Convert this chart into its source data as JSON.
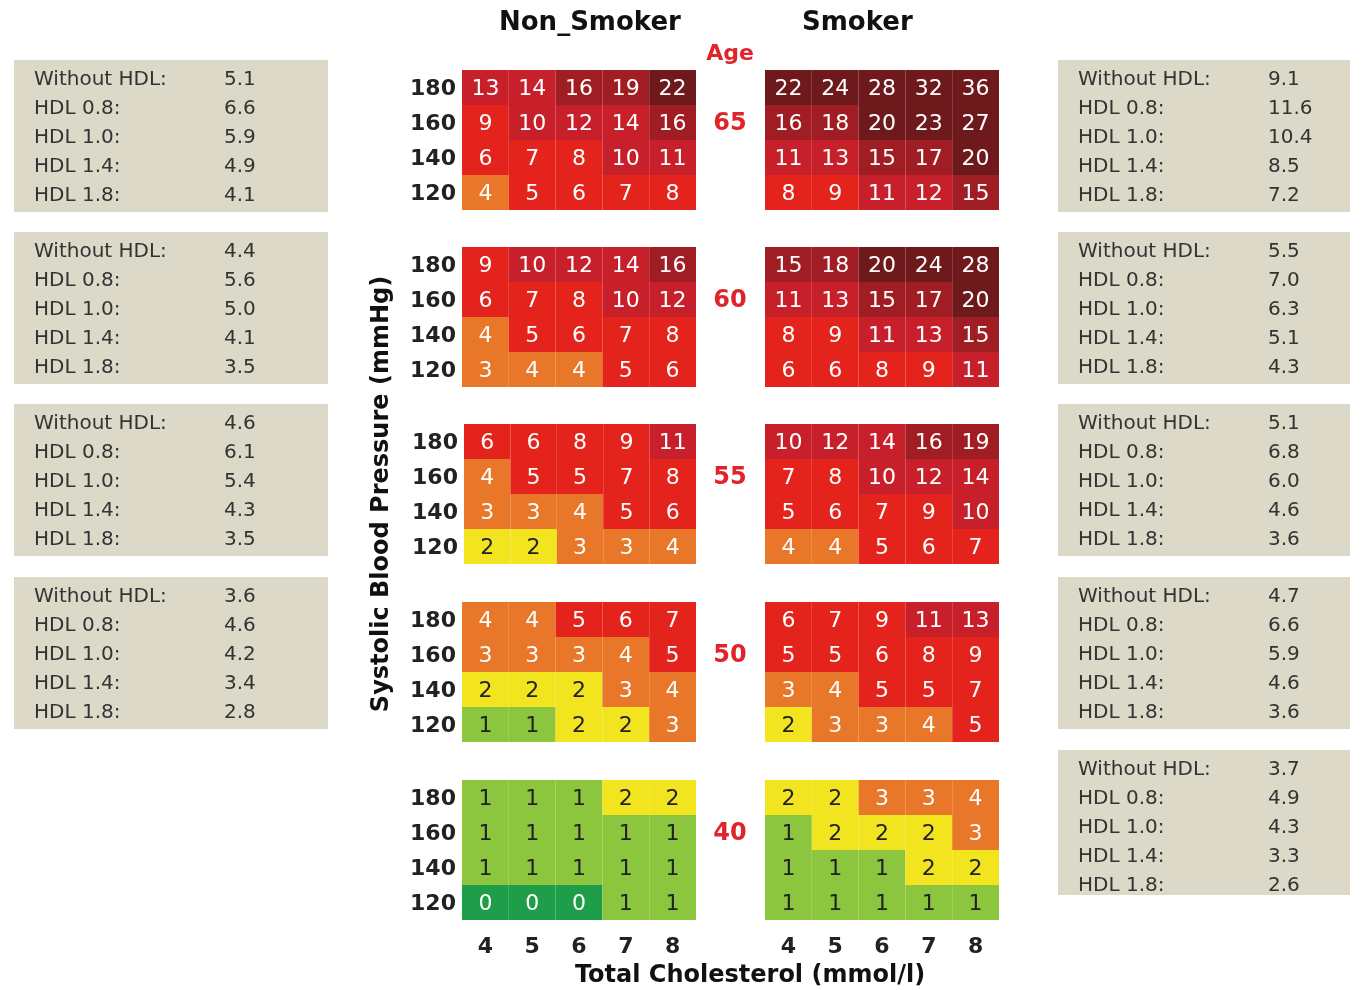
{
  "chart_data": [
    {
      "type": "other",
      "annotations": [
        "Without HDL:",
        "5.1",
        "HDL 0.8:",
        "6.6",
        "HDL 1.0:",
        "5.9",
        "HDL 1.4:",
        "4.9",
        "HDL 1.8:",
        "4.1"
      ]
    },
    {
      "type": "heatmap",
      "title": "Non_Smoker",
      "categories": [
        "4",
        "5",
        "6",
        "7",
        "8"
      ],
      "y_categories": [
        "180",
        "160",
        "140",
        "120"
      ],
      "cells": [
        [
          13,
          14,
          16,
          19,
          22
        ],
        [
          9,
          10,
          12,
          14,
          16
        ],
        [
          6,
          7,
          8,
          10,
          11
        ],
        [
          4,
          5,
          6,
          7,
          8
        ]
      ],
      "colors": [
        [
          "#c7202a",
          "#c7202a",
          "#a11d24",
          "#a11d24",
          "#6e1a1c"
        ],
        [
          "#e3231c",
          "#c7202a",
          "#c7202a",
          "#c7202a",
          "#a11d24"
        ],
        [
          "#e3231c",
          "#e3231c",
          "#e3231c",
          "#c7202a",
          "#c7202a"
        ],
        [
          "#e8772a",
          "#e3231c",
          "#e3231c",
          "#e3231c",
          "#e3231c"
        ]
      ],
      "data_labels": true,
      "tick_labels": "y",
      "annotations": [
        "Age",
        "65"
      ]
    },
    {
      "type": "heatmap",
      "title": "Smoker",
      "categories": [
        "4",
        "5",
        "6",
        "7",
        "8"
      ],
      "y_categories": [
        "180",
        "160",
        "140",
        "120"
      ],
      "cells": [
        [
          22,
          24,
          28,
          32,
          36
        ],
        [
          16,
          18,
          20,
          23,
          27
        ],
        [
          11,
          13,
          15,
          17,
          20
        ],
        [
          8,
          9,
          11,
          12,
          15
        ]
      ],
      "colors": [
        [
          "#6e1a1c",
          "#6e1a1c",
          "#6e1a1c",
          "#6e1a1c",
          "#6e1a1c"
        ],
        [
          "#a11d24",
          "#a11d24",
          "#6e1a1c",
          "#6e1a1c",
          "#6e1a1c"
        ],
        [
          "#c7202a",
          "#c7202a",
          "#a11d24",
          "#a11d24",
          "#6e1a1c"
        ],
        [
          "#e3231c",
          "#e3231c",
          "#c7202a",
          "#c7202a",
          "#a11d24"
        ]
      ],
      "data_labels": true,
      "tick_labels": false
    },
    {
      "type": "other",
      "annotations": [
        "Without HDL:",
        "9.1",
        "HDL 0.8:",
        "11.6",
        "HDL 1.0:",
        "10.4",
        "HDL 1.4:",
        "8.5",
        "HDL 1.8:",
        "7.2"
      ]
    },
    {
      "type": "other",
      "annotations": [
        "Without HDL:",
        "4.4",
        "HDL 0.8:",
        "5.6",
        "HDL 1.0:",
        "5.0",
        "HDL 1.4:",
        "4.1",
        "HDL 1.8:",
        "3.5"
      ]
    },
    {
      "type": "heatmap",
      "categories": [
        "4",
        "5",
        "6",
        "7",
        "8"
      ],
      "y_categories": [
        "180",
        "160",
        "140",
        "120"
      ],
      "cells": [
        [
          9,
          10,
          12,
          14,
          16
        ],
        [
          6,
          7,
          8,
          10,
          12
        ],
        [
          4,
          5,
          6,
          7,
          8
        ],
        [
          3,
          4,
          4,
          5,
          6
        ]
      ],
      "colors": [
        [
          "#e3231c",
          "#c7202a",
          "#c7202a",
          "#c7202a",
          "#a11d24"
        ],
        [
          "#e3231c",
          "#e3231c",
          "#e3231c",
          "#c7202a",
          "#c7202a"
        ],
        [
          "#e8772a",
          "#e3231c",
          "#e3231c",
          "#e3231c",
          "#e3231c"
        ],
        [
          "#e8772a",
          "#e8772a",
          "#e8772a",
          "#e3231c",
          "#e3231c"
        ]
      ],
      "data_labels": true,
      "tick_labels": "y",
      "annotations": [
        "60"
      ]
    },
    {
      "type": "heatmap",
      "categories": [
        "4",
        "5",
        "6",
        "7",
        "8"
      ],
      "y_categories": [
        "180",
        "160",
        "140",
        "120"
      ],
      "cells": [
        [
          15,
          18,
          20,
          24,
          28
        ],
        [
          11,
          13,
          15,
          17,
          20
        ],
        [
          8,
          9,
          11,
          13,
          15
        ],
        [
          6,
          6,
          8,
          9,
          11
        ]
      ],
      "colors": [
        [
          "#a11d24",
          "#a11d24",
          "#6e1a1c",
          "#6e1a1c",
          "#6e1a1c"
        ],
        [
          "#c7202a",
          "#c7202a",
          "#a11d24",
          "#a11d24",
          "#6e1a1c"
        ],
        [
          "#e3231c",
          "#e3231c",
          "#c7202a",
          "#c7202a",
          "#a11d24"
        ],
        [
          "#e3231c",
          "#e3231c",
          "#e3231c",
          "#e3231c",
          "#c7202a"
        ]
      ],
      "data_labels": true,
      "tick_labels": false
    },
    {
      "type": "other",
      "annotations": [
        "Without HDL:",
        "5.5",
        "HDL 0.8:",
        "7.0",
        "HDL 1.0:",
        "6.3",
        "HDL 1.4:",
        "5.1",
        "HDL 1.8:",
        "4.3"
      ]
    },
    {
      "type": "other",
      "annotations": [
        "Without HDL:",
        "4.6",
        "HDL 0.8:",
        "6.1",
        "HDL 1.0:",
        "5.4",
        "HDL 1.4:",
        "4.3",
        "HDL 1.8:",
        "3.5"
      ]
    },
    {
      "type": "heatmap",
      "ylabel": "Systolic Blood Pressure (mmHg)",
      "categories": [
        "4",
        "5",
        "6",
        "7",
        "8"
      ],
      "y_categories": [
        "180",
        "160",
        "140",
        "120"
      ],
      "cells": [
        [
          6,
          6,
          8,
          9,
          11
        ],
        [
          4,
          5,
          5,
          7,
          8
        ],
        [
          3,
          3,
          4,
          5,
          6
        ],
        [
          2,
          2,
          3,
          3,
          4
        ]
      ],
      "colors": [
        [
          "#e3231c",
          "#e3231c",
          "#e3231c",
          "#e3231c",
          "#c7202a"
        ],
        [
          "#e8772a",
          "#e3231c",
          "#e3231c",
          "#e3231c",
          "#e3231c"
        ],
        [
          "#e8772a",
          "#e8772a",
          "#e8772a",
          "#e3231c",
          "#e3231c"
        ],
        [
          "#f2e41e",
          "#f2e41e",
          "#e8772a",
          "#e8772a",
          "#e8772a"
        ]
      ],
      "data_labels": true,
      "tick_labels": "y",
      "annotations": [
        "55"
      ]
    },
    {
      "type": "heatmap",
      "categories": [
        "4",
        "5",
        "6",
        "7",
        "8"
      ],
      "y_categories": [
        "180",
        "160",
        "140",
        "120"
      ],
      "cells": [
        [
          10,
          12,
          14,
          16,
          19
        ],
        [
          7,
          8,
          10,
          12,
          14
        ],
        [
          5,
          6,
          7,
          9,
          10
        ],
        [
          4,
          4,
          5,
          6,
          7
        ]
      ],
      "colors": [
        [
          "#c7202a",
          "#c7202a",
          "#c7202a",
          "#a11d24",
          "#a11d24"
        ],
        [
          "#e3231c",
          "#e3231c",
          "#c7202a",
          "#c7202a",
          "#c7202a"
        ],
        [
          "#e3231c",
          "#e3231c",
          "#e3231c",
          "#e3231c",
          "#c7202a"
        ],
        [
          "#e8772a",
          "#e8772a",
          "#e3231c",
          "#e3231c",
          "#e3231c"
        ]
      ],
      "data_labels": true,
      "tick_labels": false
    },
    {
      "type": "other",
      "annotations": [
        "Without HDL:",
        "5.1",
        "HDL 0.8:",
        "6.8",
        "HDL 1.0:",
        "6.0",
        "HDL 1.4:",
        "4.6",
        "HDL 1.8:",
        "3.6"
      ]
    },
    {
      "type": "other",
      "annotations": [
        "Without HDL:",
        "3.6",
        "HDL 0.8:",
        "4.6",
        "HDL 1.0:",
        "4.2",
        "HDL 1.4:",
        "3.4",
        "HDL 1.8:",
        "2.8"
      ]
    },
    {
      "type": "heatmap",
      "categories": [
        "4",
        "5",
        "6",
        "7",
        "8"
      ],
      "y_categories": [
        "180",
        "160",
        "140",
        "120"
      ],
      "cells": [
        [
          4,
          4,
          5,
          6,
          7
        ],
        [
          3,
          3,
          3,
          4,
          5
        ],
        [
          2,
          2,
          2,
          3,
          4
        ],
        [
          1,
          1,
          2,
          2,
          3
        ]
      ],
      "colors": [
        [
          "#e8772a",
          "#e8772a",
          "#e3231c",
          "#e3231c",
          "#e3231c"
        ],
        [
          "#e8772a",
          "#e8772a",
          "#e8772a",
          "#e8772a",
          "#e3231c"
        ],
        [
          "#f2e41e",
          "#f2e41e",
          "#f2e41e",
          "#e8772a",
          "#e8772a"
        ],
        [
          "#8cc63f",
          "#8cc63f",
          "#f2e41e",
          "#f2e41e",
          "#e8772a"
        ]
      ],
      "data_labels": true,
      "tick_labels": "y",
      "annotations": [
        "50"
      ]
    },
    {
      "type": "heatmap",
      "categories": [
        "4",
        "5",
        "6",
        "7",
        "8"
      ],
      "y_categories": [
        "180",
        "160",
        "140",
        "120"
      ],
      "cells": [
        [
          6,
          7,
          9,
          11,
          13
        ],
        [
          5,
          5,
          6,
          8,
          9
        ],
        [
          3,
          4,
          5,
          5,
          7
        ],
        [
          2,
          3,
          3,
          4,
          5
        ]
      ],
      "colors": [
        [
          "#e3231c",
          "#e3231c",
          "#e3231c",
          "#c7202a",
          "#c7202a"
        ],
        [
          "#e3231c",
          "#e3231c",
          "#e3231c",
          "#e3231c",
          "#e3231c"
        ],
        [
          "#e8772a",
          "#e8772a",
          "#e3231c",
          "#e3231c",
          "#e3231c"
        ],
        [
          "#f2e41e",
          "#e8772a",
          "#e8772a",
          "#e8772a",
          "#e3231c"
        ]
      ],
      "data_labels": true,
      "tick_labels": false
    },
    {
      "type": "other",
      "annotations": [
        "Without HDL:",
        "4.7",
        "HDL 0.8:",
        "6.6",
        "HDL 1.0:",
        "5.9",
        "HDL 1.4:",
        "4.6",
        "HDL 1.8:",
        "3.6"
      ]
    },
    {
      "type": "heatmap",
      "xlabel": "Total Cholesterol (mmol/l)",
      "categories": [
        "4",
        "5",
        "6",
        "7",
        "8"
      ],
      "y_categories": [
        "180",
        "160",
        "140",
        "120"
      ],
      "cells": [
        [
          1,
          1,
          1,
          2,
          2
        ],
        [
          1,
          1,
          1,
          1,
          1
        ],
        [
          1,
          1,
          1,
          1,
          1
        ],
        [
          0,
          0,
          0,
          1,
          1
        ]
      ],
      "colors": [
        [
          "#8cc63f",
          "#8cc63f",
          "#8cc63f",
          "#f2e41e",
          "#f2e41e"
        ],
        [
          "#8cc63f",
          "#8cc63f",
          "#8cc63f",
          "#8cc63f",
          "#8cc63f"
        ],
        [
          "#8cc63f",
          "#8cc63f",
          "#8cc63f",
          "#8cc63f",
          "#8cc63f"
        ],
        [
          "#1f9e4a",
          "#1f9e4a",
          "#1f9e4a",
          "#8cc63f",
          "#8cc63f"
        ]
      ],
      "data_labels": true,
      "annotations": [
        "40"
      ]
    },
    {
      "type": "heatmap",
      "categories": [
        "4",
        "5",
        "6",
        "7",
        "8"
      ],
      "y_categories": [
        "180",
        "160",
        "140",
        "120"
      ],
      "cells": [
        [
          2,
          2,
          3,
          3,
          4
        ],
        [
          1,
          2,
          2,
          2,
          3
        ],
        [
          1,
          1,
          1,
          2,
          2
        ],
        [
          1,
          1,
          1,
          1,
          1
        ]
      ],
      "colors": [
        [
          "#f2e41e",
          "#f2e41e",
          "#e8772a",
          "#e8772a",
          "#e8772a"
        ],
        [
          "#8cc63f",
          "#f2e41e",
          "#f2e41e",
          "#f2e41e",
          "#e8772a"
        ],
        [
          "#8cc63f",
          "#8cc63f",
          "#8cc63f",
          "#f2e41e",
          "#f2e41e"
        ],
        [
          "#8cc63f",
          "#8cc63f",
          "#8cc63f",
          "#8cc63f",
          "#8cc63f"
        ]
      ],
      "data_labels": true,
      "tick_labels": "x"
    },
    {
      "type": "other",
      "annotations": [
        "Without HDL:",
        "3.7",
        "HDL 0.8:",
        "4.9",
        "HDL 1.0:",
        "4.3",
        "HDL 1.4:",
        "3.3",
        "HDL 1.8:",
        "2.6"
      ]
    }
  ]
}
